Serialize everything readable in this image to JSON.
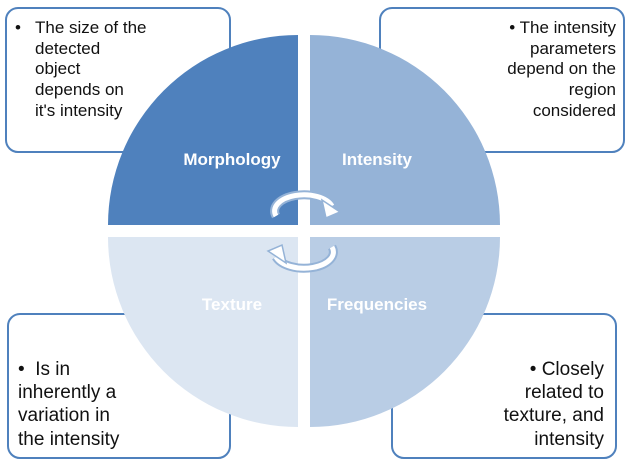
{
  "quadrants": {
    "top_left": {
      "label": "Morphology",
      "fill": "#4F81BD",
      "label_color": "#ffffff"
    },
    "top_right": {
      "label": "Intensity",
      "fill": "#95B3D7",
      "label_color": "#ffffff"
    },
    "bottom_left": {
      "label": "Texture",
      "fill": "#DCE6F2",
      "label_color": "#ffffff"
    },
    "bottom_right": {
      "label": "Frequencies",
      "fill": "#B9CDE5",
      "label_color": "#ffffff"
    }
  },
  "notes": {
    "top_left": {
      "bullet": "•",
      "lines": [
        "The size of the",
        "detected",
        "object",
        "depends on",
        "it's intensity"
      ]
    },
    "top_right": {
      "bullet": "•",
      "lines": [
        "The intensity",
        "parameters",
        "depend on the",
        "region",
        "considered"
      ]
    },
    "bottom_left": {
      "bullet": "•",
      "lines": [
        "Is in",
        "inherently a",
        "variation in",
        "the intensity"
      ]
    },
    "bottom_right": {
      "bullet": "•",
      "lines": [
        "Closely",
        "related to",
        "texture, and",
        "intensity"
      ]
    }
  },
  "colors": {
    "box_border": "#4F81BD",
    "arrow_fill": "#ffffff",
    "arrow_stroke": "#95B3D7"
  },
  "icons": {
    "center": "cycle-arrows-icon"
  }
}
